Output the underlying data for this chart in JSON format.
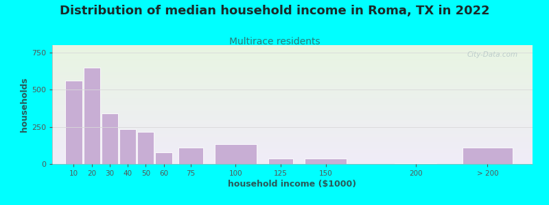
{
  "title": "Distribution of median household income in Roma, TX in 2022",
  "subtitle": "Multirace residents",
  "xlabel": "household income ($1000)",
  "ylabel": "households",
  "bar_centers": [
    10,
    20,
    30,
    40,
    50,
    60,
    75,
    100,
    125,
    150,
    200,
    240
  ],
  "bar_widths": [
    10,
    10,
    10,
    10,
    10,
    10,
    15,
    25,
    15,
    25,
    25,
    30
  ],
  "bar_labels": [
    "10",
    "20",
    "30",
    "40",
    "50",
    "60",
    "75",
    "100",
    "125",
    "150",
    "200",
    "> 200"
  ],
  "bar_values": [
    560,
    650,
    340,
    235,
    215,
    80,
    110,
    135,
    35,
    35,
    5,
    110
  ],
  "bar_color": "#c8aed4",
  "bar_edge_color": "#ffffff",
  "ylim": [
    0,
    800
  ],
  "yticks": [
    0,
    250,
    500,
    750
  ],
  "xlim": [
    -2,
    265
  ],
  "bg_outer": "#00ffff",
  "bg_top_color": "#e8f5e2",
  "bg_bottom_color": "#f0ecf8",
  "title_fontsize": 13,
  "subtitle_fontsize": 10,
  "title_color": "#1a2a2a",
  "subtitle_color": "#2a7a7a",
  "axis_label_color": "#2a5a5a",
  "tick_color": "#555555",
  "watermark": "City-Data.com",
  "watermark_color": "#b8c8c8",
  "grid_color": "#d8d8d8"
}
